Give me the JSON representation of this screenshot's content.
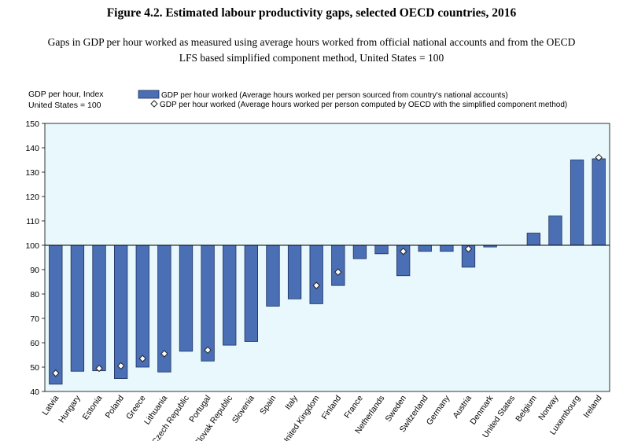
{
  "figure": {
    "title": "Figure 4.2. Estimated labour productivity gaps, selected OECD countries, 2016",
    "subtitle_line1": "Gaps in GDP per hour worked as measured using average hours worked from official national accounts and from the OECD",
    "subtitle_line2": "LFS based simplified component method, United States = 100"
  },
  "colors": {
    "bar": "#4A6FB5",
    "bar_stroke": "#1F2F5C",
    "plot_bg": "#E8F8FC",
    "marker_fill": "#ffffff",
    "marker_stroke": "#222222"
  },
  "chart_data": {
    "type": "bar",
    "ylabel_line1": "GDP per hour, Index",
    "ylabel_line2": "United States = 100",
    "ylim": [
      40,
      150
    ],
    "yticks": [
      40,
      50,
      60,
      70,
      80,
      90,
      100,
      110,
      120,
      130,
      140,
      150
    ],
    "baseline": 100,
    "grid": false,
    "legend_position": "top",
    "categories": [
      "Latvia",
      "Hungary",
      "Estonia",
      "Poland",
      "Greece",
      "Lithuania",
      "Czech Republic",
      "Portugal",
      "Slovak Republic",
      "Slovenia",
      "Spain",
      "Italy",
      "United Kingdom",
      "Finland",
      "France",
      "Netherlands",
      "Sweden",
      "Switzerland",
      "Germany",
      "Austria",
      "Denmark",
      "United States",
      "Belgium",
      "Norway",
      "Luxembourg",
      "Ireland"
    ],
    "series": [
      {
        "name": "GDP per hour worked (Average hours worked per person sourced from country's national accounts)",
        "kind": "bar",
        "values": [
          43,
          48.3,
          48.5,
          45.3,
          50,
          48,
          56.5,
          52.5,
          59,
          60.5,
          75,
          78,
          76,
          83.5,
          94.5,
          96.5,
          87.5,
          97.5,
          97.5,
          91,
          99.3,
          100,
          105,
          112,
          135,
          135.5
        ]
      },
      {
        "name": "GDP per hour worked (Average hours worked per person computed by OECD with the simplified component method)",
        "kind": "marker",
        "values": [
          47.5,
          null,
          49.5,
          50.5,
          53.5,
          55.5,
          null,
          57,
          null,
          null,
          null,
          null,
          83.5,
          89,
          null,
          null,
          97.5,
          null,
          null,
          98.5,
          null,
          null,
          null,
          null,
          null,
          136
        ]
      }
    ]
  }
}
